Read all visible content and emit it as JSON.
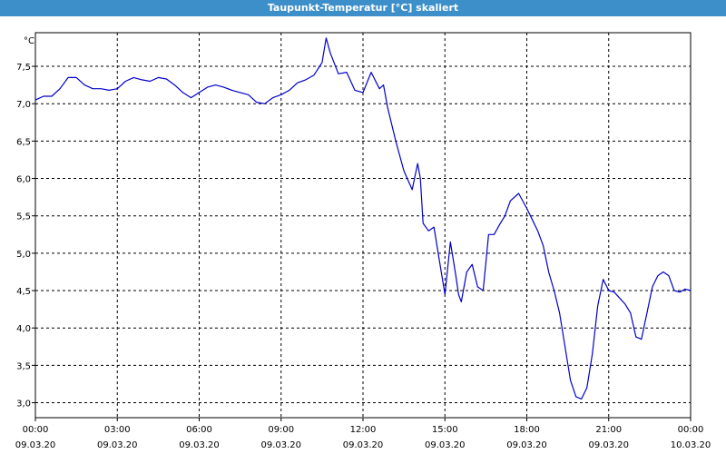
{
  "window": {
    "title": "Taupunkt-Temperatur [°C] skaliert"
  },
  "chart_data": {
    "type": "line",
    "title": "Taupunkt-Temperatur [°C] skaliert",
    "ylabel": "°C",
    "xlabel": "",
    "ylim": [
      2.8,
      7.95
    ],
    "yticks": [
      3.0,
      3.5,
      4.0,
      4.5,
      5.0,
      5.5,
      6.0,
      6.5,
      7.0,
      7.5
    ],
    "ytick_labels": [
      "3,0",
      "3,5",
      "4,0",
      "4,5",
      "5,0",
      "5,5",
      "6,0",
      "6,5",
      "7,0",
      "7,5"
    ],
    "xlim_hours": [
      0,
      24
    ],
    "xticks": [
      {
        "hour": 0,
        "time": "00:00",
        "date": "09.03.20"
      },
      {
        "hour": 3,
        "time": "03:00",
        "date": "09.03.20"
      },
      {
        "hour": 6,
        "time": "06:00",
        "date": "09.03.20"
      },
      {
        "hour": 9,
        "time": "09:00",
        "date": "09.03.20"
      },
      {
        "hour": 12,
        "time": "12:00",
        "date": "09.03.20"
      },
      {
        "hour": 15,
        "time": "15:00",
        "date": "09.03.20"
      },
      {
        "hour": 18,
        "time": "18:00",
        "date": "09.03.20"
      },
      {
        "hour": 21,
        "time": "21:00",
        "date": "09.03.20"
      },
      {
        "hour": 24,
        "time": "00:00",
        "date": "10.03.20"
      }
    ],
    "grid": true,
    "series": [
      {
        "color": "#0000cc",
        "x": [
          0.0,
          0.3,
          0.6,
          0.9,
          1.2,
          1.5,
          1.8,
          2.1,
          2.4,
          2.7,
          3.0,
          3.3,
          3.6,
          3.9,
          4.2,
          4.5,
          4.8,
          5.1,
          5.4,
          5.7,
          6.0,
          6.3,
          6.6,
          6.9,
          7.2,
          7.5,
          7.8,
          8.1,
          8.4,
          8.7,
          9.0,
          9.3,
          9.6,
          9.9,
          10.2,
          10.5,
          10.65,
          10.8,
          11.1,
          11.4,
          11.7,
          12.0,
          12.3,
          12.6,
          12.75,
          12.9,
          13.2,
          13.5,
          13.8,
          14.0,
          14.1,
          14.2,
          14.4,
          14.6,
          14.8,
          15.0,
          15.1,
          15.2,
          15.4,
          15.5,
          15.6,
          15.8,
          16.0,
          16.2,
          16.4,
          16.6,
          16.8,
          17.0,
          17.2,
          17.4,
          17.7,
          18.0,
          18.2,
          18.4,
          18.6,
          18.8,
          19.0,
          19.2,
          19.4,
          19.6,
          19.8,
          20.0,
          20.2,
          20.4,
          20.6,
          20.8,
          21.0,
          21.2,
          21.4,
          21.6,
          21.8,
          22.0,
          22.2,
          22.4,
          22.6,
          22.8,
          23.0,
          23.2,
          23.4,
          23.6,
          23.8,
          24.0
        ],
        "y": [
          7.05,
          7.1,
          7.1,
          7.2,
          7.35,
          7.35,
          7.25,
          7.2,
          7.2,
          7.18,
          7.2,
          7.3,
          7.35,
          7.32,
          7.3,
          7.35,
          7.33,
          7.25,
          7.15,
          7.08,
          7.15,
          7.22,
          7.25,
          7.22,
          7.18,
          7.15,
          7.12,
          7.02,
          7.0,
          7.08,
          7.12,
          7.18,
          7.28,
          7.32,
          7.38,
          7.55,
          7.88,
          7.68,
          7.4,
          7.42,
          7.18,
          7.15,
          7.42,
          7.2,
          7.25,
          6.95,
          6.5,
          6.1,
          5.85,
          6.2,
          6.0,
          5.4,
          5.3,
          5.35,
          4.9,
          4.45,
          4.8,
          5.15,
          4.7,
          4.45,
          4.35,
          4.75,
          4.85,
          4.55,
          4.5,
          5.25,
          5.25,
          5.38,
          5.5,
          5.7,
          5.8,
          5.6,
          5.45,
          5.3,
          5.1,
          4.75,
          4.5,
          4.2,
          3.75,
          3.3,
          3.08,
          3.05,
          3.2,
          3.65,
          4.3,
          4.65,
          4.5,
          4.48,
          4.4,
          4.32,
          4.2,
          3.88,
          3.85,
          4.2,
          4.55,
          4.7,
          4.75,
          4.7,
          4.5,
          4.48,
          4.52,
          4.5
        ]
      }
    ]
  }
}
